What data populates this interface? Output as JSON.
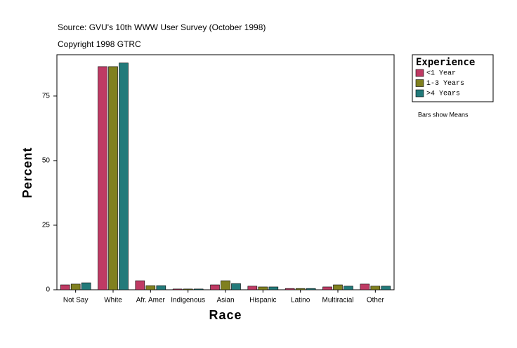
{
  "chart_data": {
    "type": "bar",
    "title": "Source: GVU's 10th WWW User Survey (October 1998)",
    "subtitle": "Copyright 1998 GTRC",
    "x_label": "Race",
    "y_label": "Percent",
    "legend_title": "Experience",
    "note": "Bars show Means",
    "categories": [
      "Not Say",
      "White",
      "Afr. Amer",
      "Indigenous",
      "Asian",
      "Hispanic",
      "Latino",
      "Multiracial",
      "Other"
    ],
    "series": [
      {
        "name": "<1 Year",
        "color": "#bf3a64",
        "values": [
          1.9,
          86.4,
          3.5,
          0.3,
          1.9,
          1.4,
          0.5,
          1.1,
          2.2
        ]
      },
      {
        "name": "1-3 Years",
        "color": "#80801f",
        "values": [
          2.2,
          86.4,
          1.6,
          0.3,
          3.5,
          1.1,
          0.5,
          1.9,
          1.4
        ]
      },
      {
        "name": ">4 Years",
        "color": "#227a7a",
        "values": [
          2.7,
          87.8,
          1.6,
          0.3,
          2.4,
          1.1,
          0.5,
          1.4,
          1.4
        ]
      }
    ],
    "ylim": [
      0,
      91
    ],
    "yticks": [
      0,
      25,
      50,
      75
    ],
    "grid": false,
    "legend_position": "right"
  }
}
